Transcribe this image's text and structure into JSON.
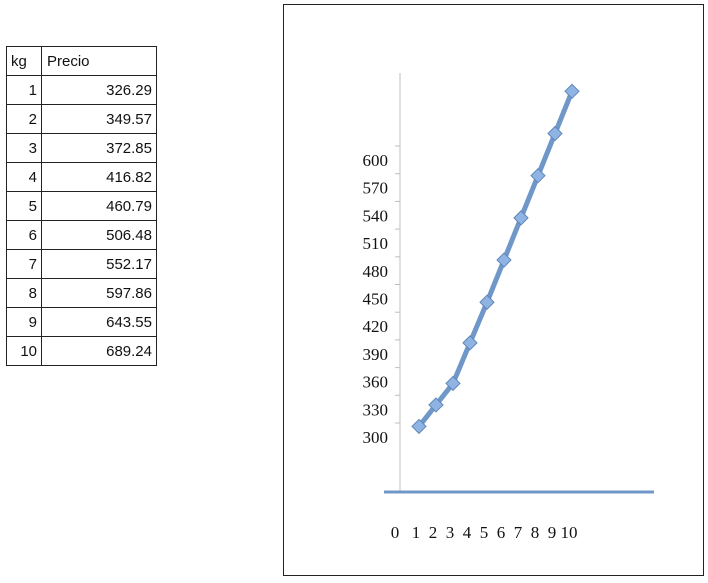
{
  "table": {
    "headers": [
      "kg",
      "Precio"
    ],
    "rows": [
      [
        "1",
        "326.29"
      ],
      [
        "2",
        "349.57"
      ],
      [
        "3",
        "372.85"
      ],
      [
        "4",
        "416.82"
      ],
      [
        "5",
        "460.79"
      ],
      [
        "6",
        "506.48"
      ],
      [
        "7",
        "552.17"
      ],
      [
        "8",
        "597.86"
      ],
      [
        "9",
        "643.55"
      ],
      [
        "10",
        "689.24"
      ]
    ]
  },
  "chart_data": {
    "type": "line",
    "title": "",
    "xlabel": "",
    "ylabel": "",
    "x_ticks": [
      "0",
      "1",
      "2",
      "3",
      "4",
      "5",
      "6",
      "7",
      "8",
      "9",
      "10"
    ],
    "y_ticks": [
      "300",
      "330",
      "360",
      "390",
      "420",
      "450",
      "480",
      "510",
      "540",
      "570",
      "600"
    ],
    "x": [
      1,
      2,
      3,
      4,
      5,
      6,
      7,
      8,
      9,
      10
    ],
    "values": [
      326.29,
      349.57,
      372.85,
      416.82,
      460.79,
      506.48,
      552.17,
      597.86,
      643.55,
      689.24
    ],
    "line_color": "#6f97c8",
    "marker_color": "#8fb4e3",
    "marker": "diamond",
    "grid": false,
    "legend": false
  }
}
